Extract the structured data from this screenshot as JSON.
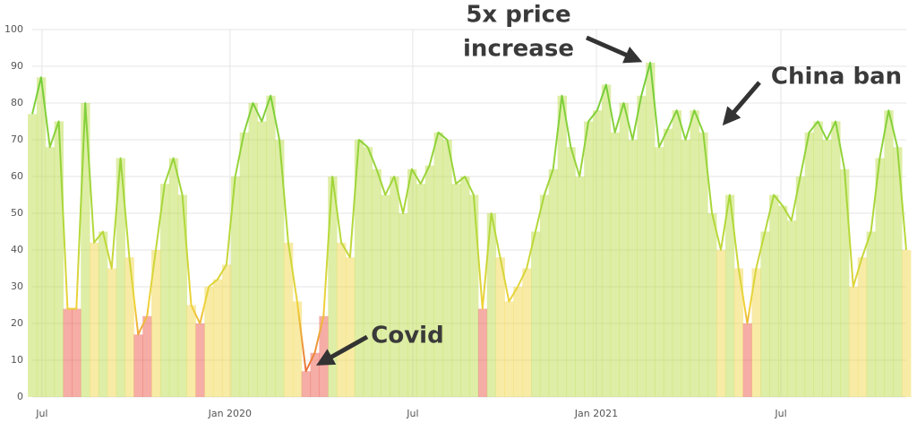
{
  "chart_data": {
    "type": "area",
    "annotations": [
      [
        "5x price",
        "increase"
      ],
      [
        "China ban"
      ],
      [
        "Covid"
      ]
    ],
    "values": [
      77,
      87,
      68,
      75,
      24,
      24,
      80,
      42,
      45,
      35,
      65,
      38,
      17,
      22,
      40,
      58,
      65,
      55,
      25,
      20,
      30,
      32,
      36,
      60,
      72,
      80,
      75,
      82,
      70,
      42,
      26,
      7,
      12,
      22,
      60,
      42,
      38,
      70,
      68,
      62,
      55,
      60,
      50,
      62,
      58,
      63,
      72,
      70,
      58,
      60,
      55,
      24,
      50,
      38,
      26,
      30,
      35,
      45,
      55,
      62,
      82,
      68,
      60,
      75,
      78,
      85,
      72,
      80,
      70,
      82,
      91,
      68,
      73,
      78,
      70,
      78,
      72,
      50,
      40,
      55,
      35,
      20,
      35,
      45,
      55,
      52,
      48,
      60,
      72,
      75,
      70,
      75,
      62,
      30,
      38,
      45,
      65,
      78,
      68,
      40
    ],
    "xlim": [
      0,
      99
    ],
    "xticks": [
      {
        "value": 1.1,
        "label": "Jul"
      },
      {
        "value": 22.4,
        "label": "Jan 2020"
      },
      {
        "value": 43.1,
        "label": "Jul"
      },
      {
        "value": 63.9,
        "label": "Jan 2021"
      },
      {
        "value": 84.8,
        "label": "Jul"
      }
    ],
    "ylim": [
      0,
      100
    ],
    "yticks": [
      0,
      10,
      20,
      30,
      40,
      50,
      60,
      70,
      80,
      90,
      100
    ],
    "grid": true,
    "color_stops": [
      {
        "value": 0,
        "color": "#e8493a"
      },
      {
        "value": 25,
        "color": "#f0d23a"
      },
      {
        "value": 45,
        "color": "#b5d93a"
      },
      {
        "value": 100,
        "color": "#5cc93a"
      }
    ]
  }
}
